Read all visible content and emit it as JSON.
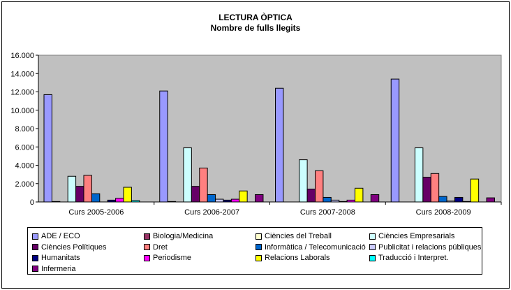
{
  "chart_data": {
    "type": "bar",
    "title": "LECTURA ÒPTICA",
    "subtitle": "Nombre de fulls llegits",
    "ylim": [
      0,
      16000
    ],
    "yticks": [
      "0",
      "2.000",
      "4.000",
      "6.000",
      "8.000",
      "10.000",
      "12.000",
      "14.000",
      "16.000"
    ],
    "categories": [
      "Curs 2005-2006",
      "Curs 2006-2007",
      "Curs 2007-2008",
      "Curs 2008-2009"
    ],
    "legend_position": "bottom",
    "series": [
      {
        "name": "ADE / ECO",
        "color": "#9999ff",
        "values": [
          11700,
          12100,
          12400,
          13400
        ]
      },
      {
        "name": "Biologia/Medicina",
        "color": "#993366",
        "values": [
          50,
          50,
          0,
          0
        ]
      },
      {
        "name": "Ciències del Treball",
        "color": "#ffffcc",
        "values": [
          0,
          0,
          0,
          0
        ]
      },
      {
        "name": "Ciències Empresarials",
        "color": "#ccffff",
        "values": [
          2800,
          5900,
          4600,
          5900
        ]
      },
      {
        "name": "Ciències Polítiques",
        "color": "#660066",
        "values": [
          1700,
          1700,
          1400,
          2700
        ]
      },
      {
        "name": "Dret",
        "color": "#ff8080",
        "values": [
          2900,
          3700,
          3400,
          3100
        ]
      },
      {
        "name": "Informàtica / Telecomunicació",
        "color": "#0066cc",
        "values": [
          900,
          800,
          500,
          600
        ]
      },
      {
        "name": "Publicitat i relacions públiques",
        "color": "#ccccff",
        "values": [
          0,
          300,
          200,
          100
        ]
      },
      {
        "name": "Humanitats",
        "color": "#000080",
        "values": [
          200,
          200,
          50,
          500
        ]
      },
      {
        "name": "Periodisme",
        "color": "#ff00ff",
        "values": [
          400,
          300,
          200,
          50
        ]
      },
      {
        "name": "Relacions Laborals",
        "color": "#ffff00",
        "values": [
          1600,
          1200,
          1500,
          2500
        ]
      },
      {
        "name": "Traducció i Interpret.",
        "color": "#00ffff",
        "values": [
          150,
          0,
          0,
          0
        ]
      },
      {
        "name": "Infermeria",
        "color": "#800080",
        "values": [
          0,
          800,
          800,
          450
        ]
      }
    ]
  }
}
